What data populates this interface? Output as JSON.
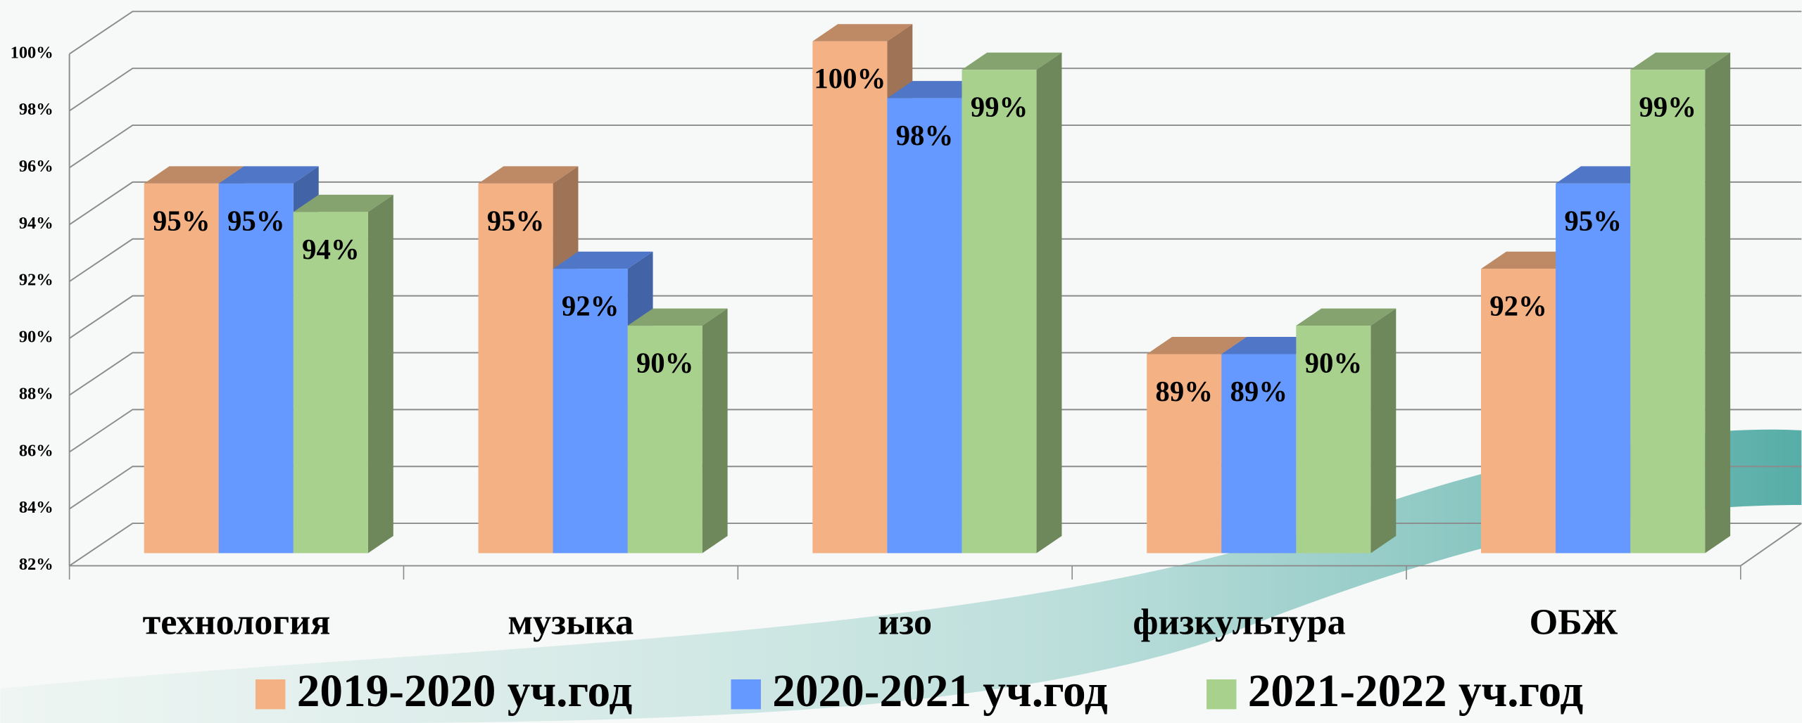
{
  "chart_data": {
    "type": "bar3d",
    "categories": [
      "технология",
      "музыка",
      "изо",
      "физкультура",
      "ОБЖ"
    ],
    "series": [
      {
        "name": "2019-2020 уч.год",
        "color": "#f4b183",
        "values": [
          95,
          95,
          100,
          89,
          92
        ],
        "value_labels": [
          "95%",
          "95%",
          "100%",
          "89%",
          "92%"
        ]
      },
      {
        "name": "2020-2021 уч.год",
        "color": "#6699ff",
        "values": [
          95,
          92,
          98,
          89,
          95
        ],
        "value_labels": [
          "95%",
          "92%",
          "98%",
          "89%",
          "95%"
        ]
      },
      {
        "name": "2021-2022 уч.год",
        "color": "#a9d18e",
        "values": [
          94,
          90,
          99,
          90,
          99
        ],
        "value_labels": [
          "94%",
          "90%",
          "99%",
          "90%",
          "99%"
        ]
      }
    ],
    "ylim": [
      82,
      100
    ],
    "yticks": [
      {
        "value": 82,
        "label": "82%"
      },
      {
        "value": 84,
        "label": "84%"
      },
      {
        "value": 86,
        "label": "86%"
      },
      {
        "value": 88,
        "label": "88%"
      },
      {
        "value": 90,
        "label": "90%"
      },
      {
        "value": 92,
        "label": "92%"
      },
      {
        "value": 94,
        "label": "94%"
      },
      {
        "value": 96,
        "label": "96%"
      },
      {
        "value": 98,
        "label": "98%"
      },
      {
        "value": 100,
        "label": "100%"
      }
    ],
    "grid": true,
    "legend": "bottom"
  }
}
